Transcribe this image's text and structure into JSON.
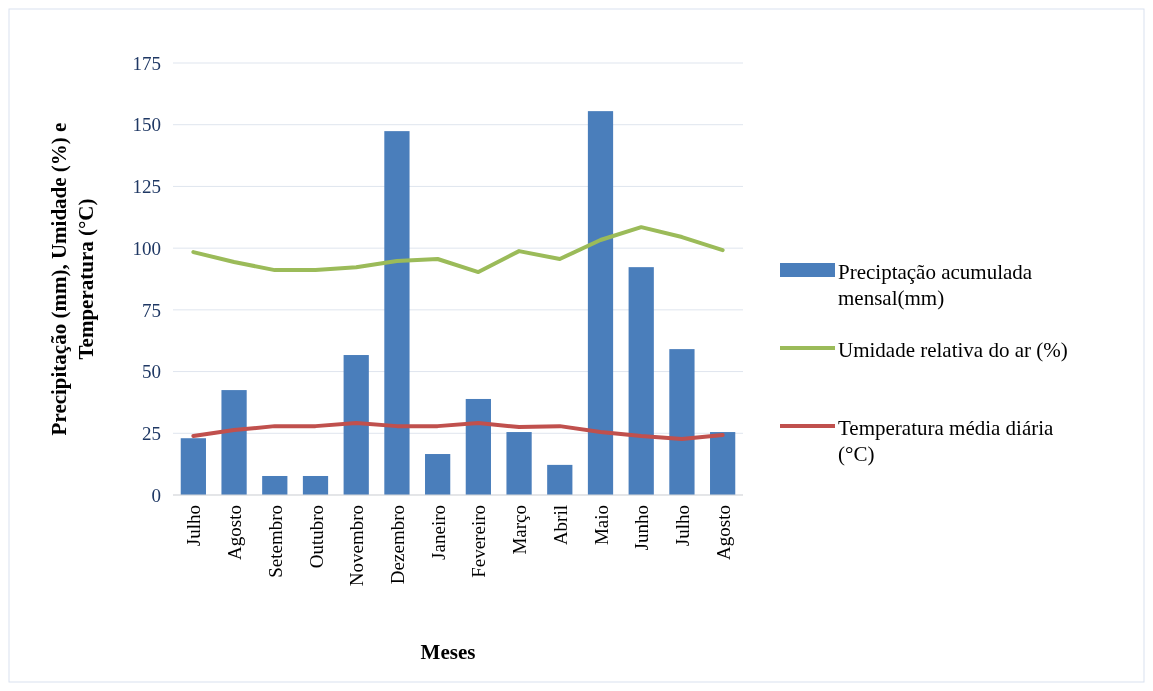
{
  "chart_data": {
    "type": "bar",
    "xlabel": "Meses",
    "ylabel": "Precipitação (mm), Umidade (%) e Temperatura (°C)",
    "categories": [
      "Julho",
      "Agosto",
      "Setembro",
      "Outubro",
      "Novembro",
      "Dezembro",
      "Janeiro",
      "Fevereiro",
      "Março",
      "Abril",
      "Maio",
      "Junho",
      "Julho",
      "Agosto"
    ],
    "series": [
      {
        "name": "Preciptação acumulada mensal(mm)",
        "color": "#4a7ebb",
        "values": [
          23,
          42.5,
          7.7,
          7.7,
          56.7,
          147.4,
          16.6,
          38.9,
          25.5,
          12.2,
          155.5,
          92.3,
          59.1,
          25.5
        ]
      },
      {
        "name": "Umidade relativa do ar (%)",
        "type": "line",
        "color": "#9bbb59",
        "values": [
          98.4,
          94.4,
          91.1,
          91.1,
          92.3,
          94.8,
          95.6,
          90.3,
          98.8,
          95.6,
          103.3,
          108.5,
          104.5,
          99.2
        ]
      },
      {
        "name": "Temperatura média diária (°C)",
        "type": "line",
        "color": "#c0504d",
        "values": [
          23.9,
          26.3,
          27.9,
          27.9,
          29.2,
          27.9,
          27.9,
          29.2,
          27.5,
          27.9,
          25.5,
          23.9,
          22.7,
          24.3
        ]
      }
    ],
    "ylim": [
      0,
      175
    ],
    "yticks": [
      0,
      25,
      50,
      75,
      100,
      125,
      150,
      175
    ],
    "grid": "y",
    "legend": "right",
    "line_style": "solid",
    "marker": "none"
  }
}
